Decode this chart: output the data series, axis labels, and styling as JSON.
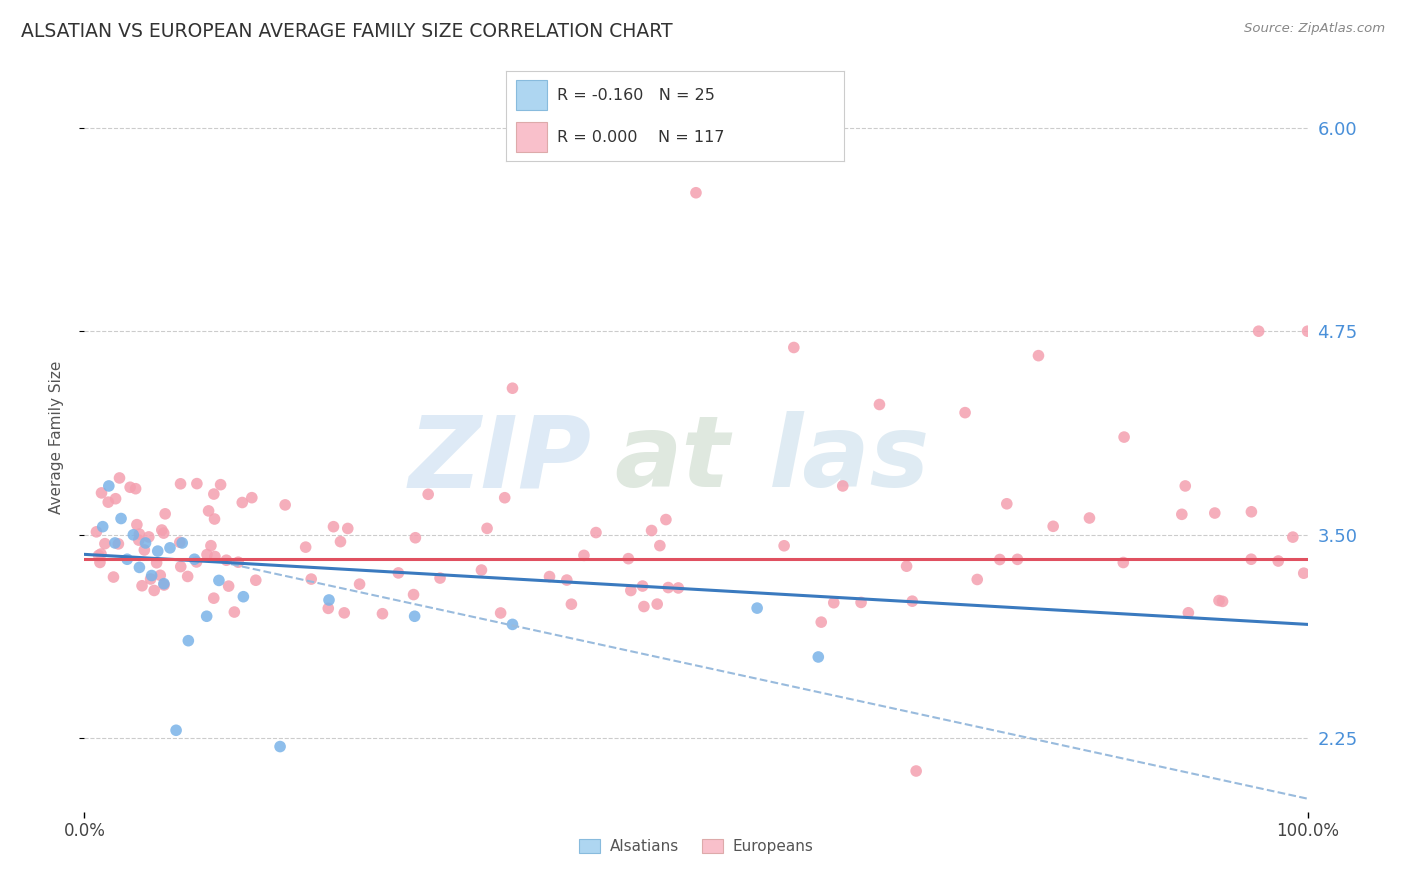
{
  "title": "ALSATIAN VS EUROPEAN AVERAGE FAMILY SIZE CORRELATION CHART",
  "source": "Source: ZipAtlas.com",
  "ylabel": "Average Family Size",
  "xlim": [
    0.0,
    100.0
  ],
  "ylim": [
    1.8,
    6.4
  ],
  "ytick_values": [
    2.25,
    3.5,
    4.75,
    6.0
  ],
  "ytick_labels": [
    "2.25",
    "3.50",
    "4.75",
    "6.00"
  ],
  "xticklabels": [
    "0.0%",
    "100.0%"
  ],
  "background_color": "#ffffff",
  "grid_color": "#cccccc",
  "alsatian_dot_color": "#7ab3e8",
  "european_dot_color": "#f4a0b0",
  "trend_blue_color": "#3a7abf",
  "trend_pink_color": "#e05060",
  "trend_dash_color": "#99bbdd",
  "ytick_color": "#4a90d9",
  "legend_box_color": "#aed6f1",
  "legend_box_color2": "#f9c0cb",
  "legend_text_color": "#333333",
  "legend_R1": "R = -0.160",
  "legend_N1": "N = 25",
  "legend_R2": "R = 0.000",
  "legend_N2": "N = 117",
  "als_trend_x0": 0,
  "als_trend_x1": 100,
  "als_trend_y0": 3.38,
  "als_trend_y1": 2.95,
  "eur_trend_y": 3.35,
  "dash_trend_x0": 12,
  "dash_trend_x1": 100,
  "dash_trend_y0": 3.32,
  "dash_trend_y1": 1.88
}
